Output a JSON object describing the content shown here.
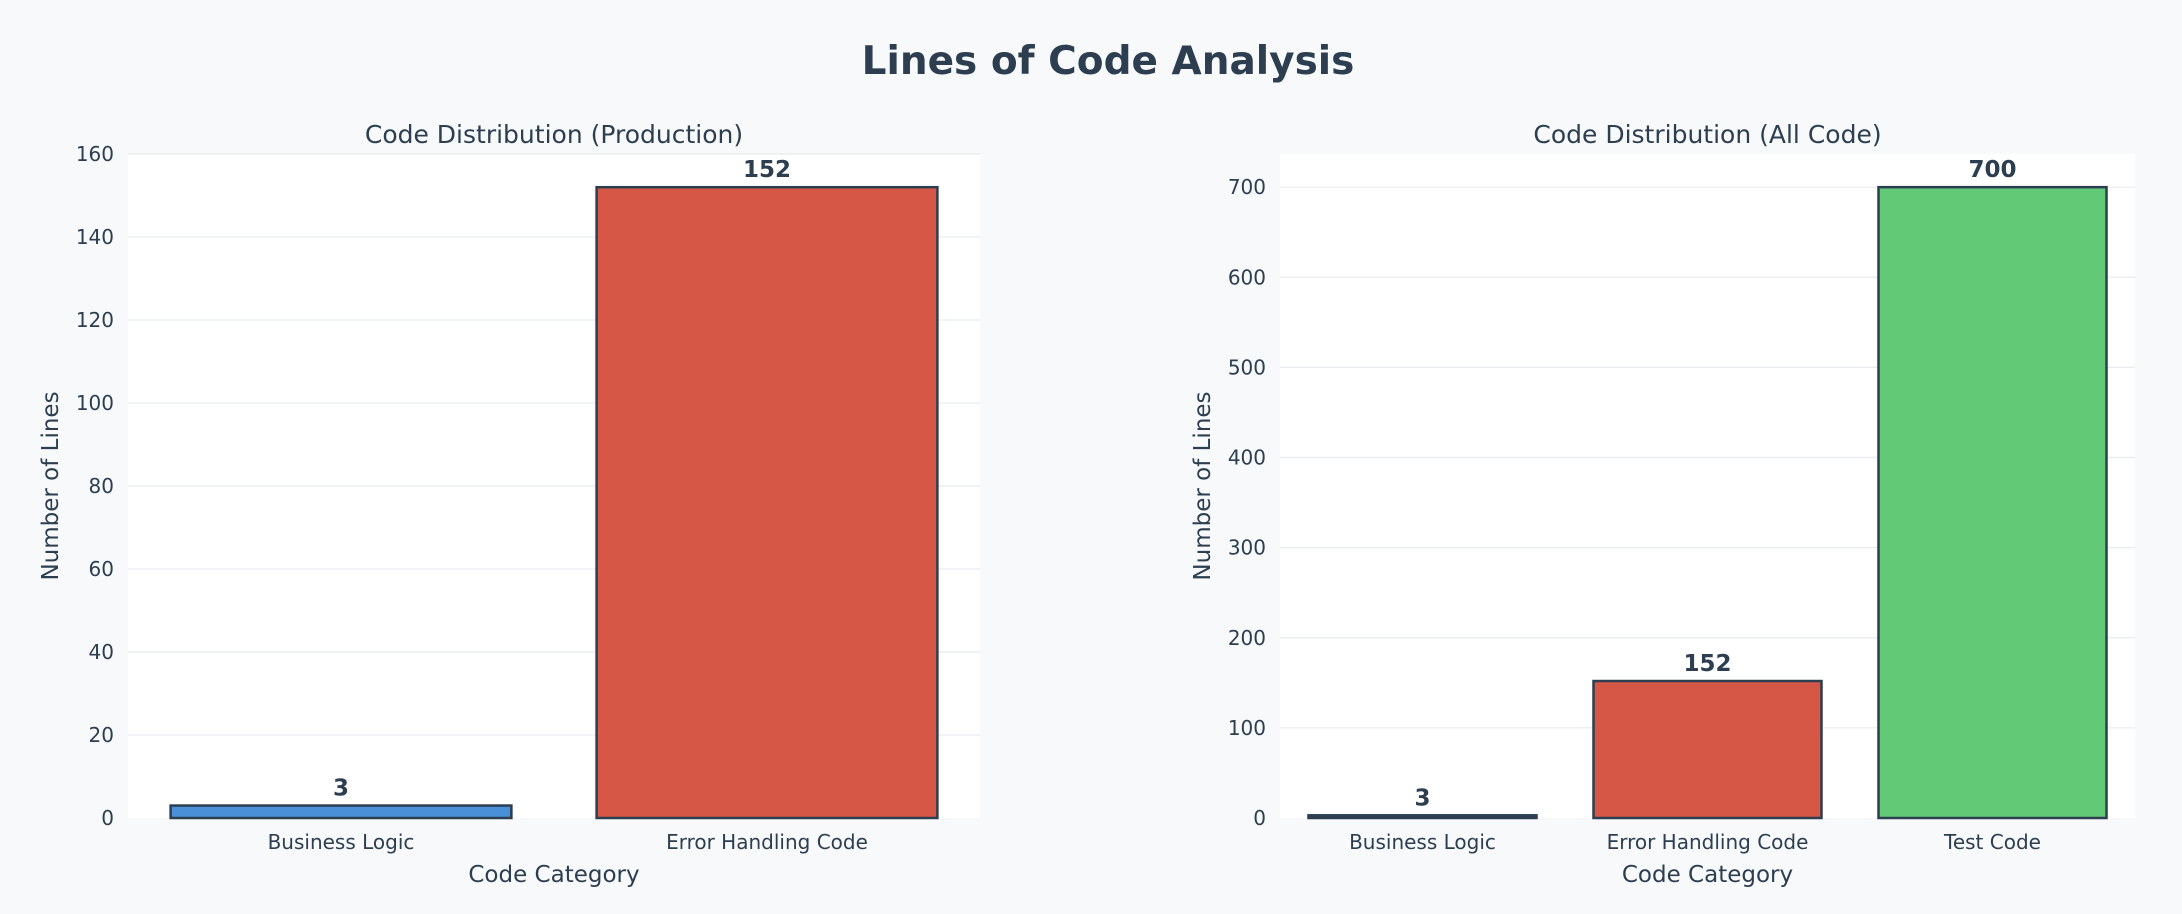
{
  "title": "Lines of Code Analysis",
  "colors": {
    "business_logic": "#4a90d9",
    "error_handling": "#d65745",
    "test_code": "#62c976",
    "text": "#2c3e50",
    "outline": "#2c3e50"
  },
  "chart_data": [
    {
      "type": "bar",
      "title": "Code Distribution (Production)",
      "xlabel": "Code Category",
      "ylabel": "Number of Lines",
      "categories": [
        "Business Logic",
        "Error Handling Code"
      ],
      "values": [
        3,
        152
      ],
      "bar_colors": [
        "#4a90d9",
        "#d65745"
      ],
      "ylim": [
        0,
        160
      ],
      "yticks": [
        0,
        20,
        40,
        60,
        80,
        100,
        120,
        140,
        160
      ],
      "grid": true,
      "data_labels": [
        "3",
        "152"
      ]
    },
    {
      "type": "bar",
      "title": "Code Distribution (All Code)",
      "xlabel": "Code Category",
      "ylabel": "Number of Lines",
      "categories": [
        "Business Logic",
        "Error Handling Code",
        "Test Code"
      ],
      "values": [
        3,
        152,
        700
      ],
      "bar_colors": [
        "#2c3e50",
        "#d65745",
        "#62c976"
      ],
      "ylim": [
        0,
        736.8
      ],
      "yticks": [
        0,
        100,
        200,
        300,
        400,
        500,
        600,
        700
      ],
      "grid": true,
      "data_labels": [
        "3",
        "152",
        "700"
      ]
    }
  ]
}
